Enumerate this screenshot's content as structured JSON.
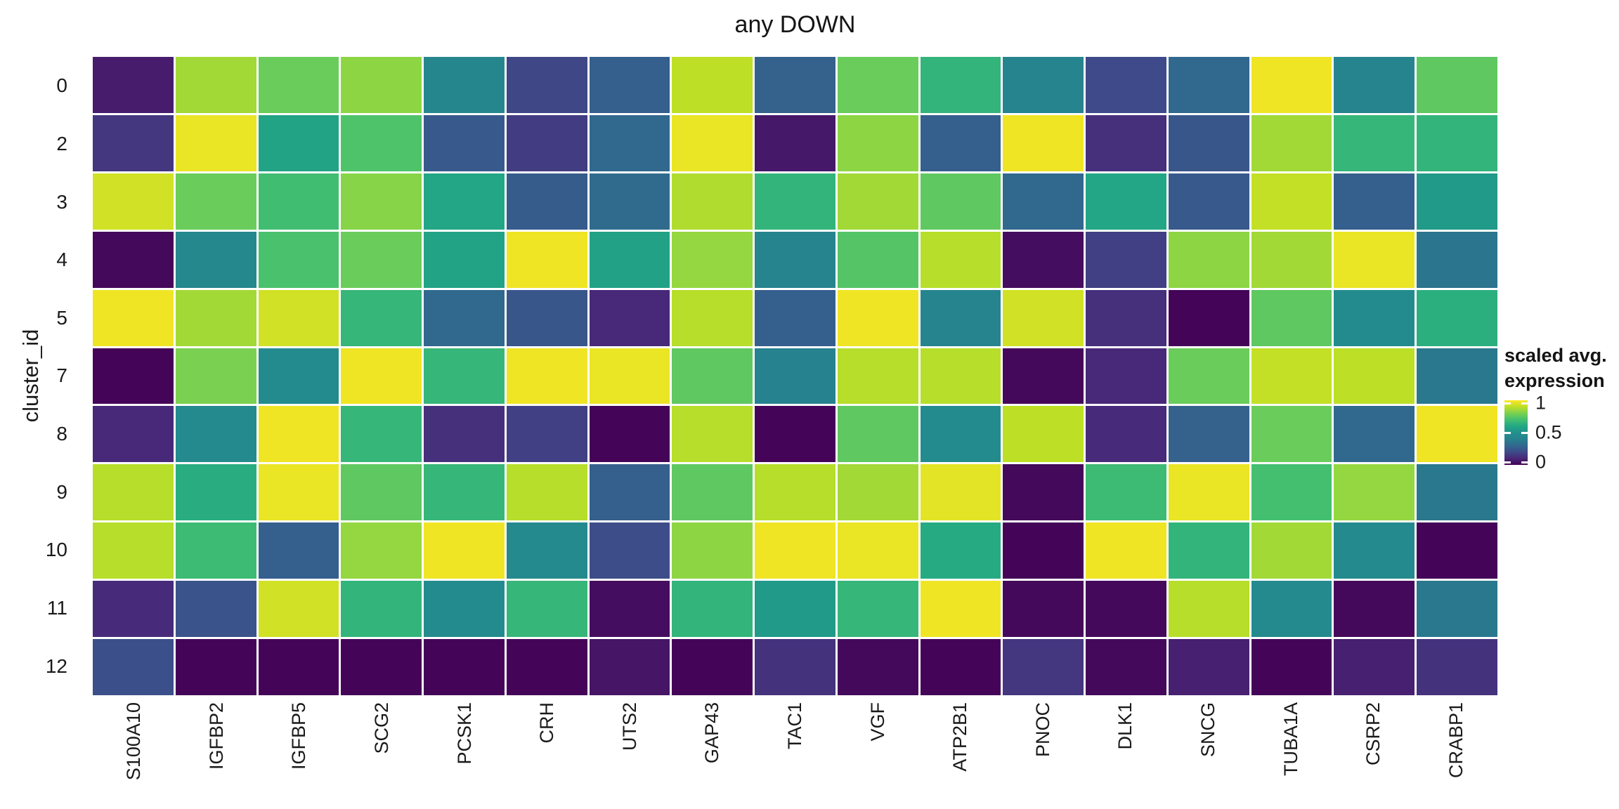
{
  "title": "any DOWN",
  "y_axis": {
    "title": "cluster_id",
    "tick_labels": [
      "0",
      "2",
      "3",
      "4",
      "5",
      "7",
      "8",
      "9",
      "10",
      "11",
      "12"
    ]
  },
  "x_axis": {
    "tick_labels": [
      "S100A10",
      "IGFBP2",
      "IGFBP5",
      "SCG2",
      "PCSK1",
      "CRH",
      "UTS2",
      "GAP43",
      "TAC1",
      "VGF",
      "ATP2B1",
      "PNOC",
      "DLK1",
      "SNCG",
      "TUBA1A",
      "CSRP2",
      "CRABP1"
    ]
  },
  "legend": {
    "title_line1": "scaled avg.",
    "title_line2": "expression",
    "tick_labels": [
      "1",
      "0.5",
      "0"
    ],
    "tick_values": [
      1,
      0.5,
      0
    ]
  },
  "chart_data": {
    "type": "heatmap",
    "title": "any DOWN",
    "xlabel": "",
    "ylabel": "cluster_id",
    "legend_title": "scaled avg. expression",
    "legend_position": "right",
    "value_range": [
      0,
      1
    ],
    "columns": [
      "S100A10",
      "IGFBP2",
      "IGFBP5",
      "SCG2",
      "PCSK1",
      "CRH",
      "UTS2",
      "GAP43",
      "TAC1",
      "VGF",
      "ATP2B1",
      "PNOC",
      "DLK1",
      "SNCG",
      "TUBA1A",
      "CSRP2",
      "CRABP1"
    ],
    "rows": [
      "0",
      "2",
      "3",
      "4",
      "5",
      "7",
      "8",
      "9",
      "10",
      "11",
      "12"
    ],
    "values": [
      [
        0.07,
        0.86,
        0.77,
        0.83,
        0.43,
        0.19,
        0.27,
        0.9,
        0.28,
        0.77,
        0.65,
        0.41,
        0.2,
        0.3,
        0.98,
        0.41,
        0.75
      ],
      [
        0.14,
        0.97,
        0.58,
        0.72,
        0.25,
        0.16,
        0.3,
        0.97,
        0.06,
        0.83,
        0.27,
        0.98,
        0.12,
        0.24,
        0.86,
        0.66,
        0.65
      ],
      [
        0.93,
        0.77,
        0.69,
        0.82,
        0.59,
        0.26,
        0.31,
        0.88,
        0.65,
        0.86,
        0.75,
        0.3,
        0.59,
        0.25,
        0.91,
        0.27,
        0.54
      ],
      [
        0.02,
        0.44,
        0.71,
        0.77,
        0.58,
        0.98,
        0.57,
        0.84,
        0.41,
        0.73,
        0.89,
        0.03,
        0.17,
        0.83,
        0.86,
        0.97,
        0.35
      ],
      [
        0.98,
        0.86,
        0.93,
        0.66,
        0.3,
        0.24,
        0.1,
        0.89,
        0.27,
        0.98,
        0.41,
        0.93,
        0.12,
        0.01,
        0.75,
        0.46,
        0.63
      ],
      [
        0.01,
        0.8,
        0.46,
        0.98,
        0.66,
        0.98,
        0.97,
        0.75,
        0.4,
        0.89,
        0.89,
        0.02,
        0.1,
        0.77,
        0.91,
        0.9,
        0.36
      ],
      [
        0.1,
        0.45,
        0.98,
        0.66,
        0.12,
        0.17,
        0.01,
        0.89,
        0.01,
        0.75,
        0.46,
        0.9,
        0.11,
        0.28,
        0.77,
        0.3,
        0.98
      ],
      [
        0.89,
        0.62,
        0.97,
        0.75,
        0.66,
        0.89,
        0.27,
        0.75,
        0.89,
        0.86,
        0.96,
        0.02,
        0.68,
        0.97,
        0.7,
        0.84,
        0.36
      ],
      [
        0.89,
        0.68,
        0.27,
        0.84,
        0.98,
        0.45,
        0.21,
        0.83,
        0.98,
        0.97,
        0.61,
        0.01,
        0.98,
        0.65,
        0.86,
        0.45,
        0.01
      ],
      [
        0.11,
        0.23,
        0.93,
        0.65,
        0.46,
        0.66,
        0.03,
        0.65,
        0.54,
        0.66,
        0.98,
        0.02,
        0.02,
        0.89,
        0.45,
        0.02,
        0.36
      ],
      [
        0.22,
        0.01,
        0.01,
        0.01,
        0.01,
        0.01,
        0.05,
        0.01,
        0.13,
        0.02,
        0.01,
        0.14,
        0.02,
        0.08,
        0.01,
        0.08,
        0.13
      ]
    ],
    "colorscale": {
      "name": "viridis",
      "stops": [
        "#440154",
        "#482878",
        "#3e4a89",
        "#31688e",
        "#26828e",
        "#21918c",
        "#22a884",
        "#44bf70",
        "#7ad151",
        "#bddf26",
        "#fde725"
      ]
    }
  }
}
